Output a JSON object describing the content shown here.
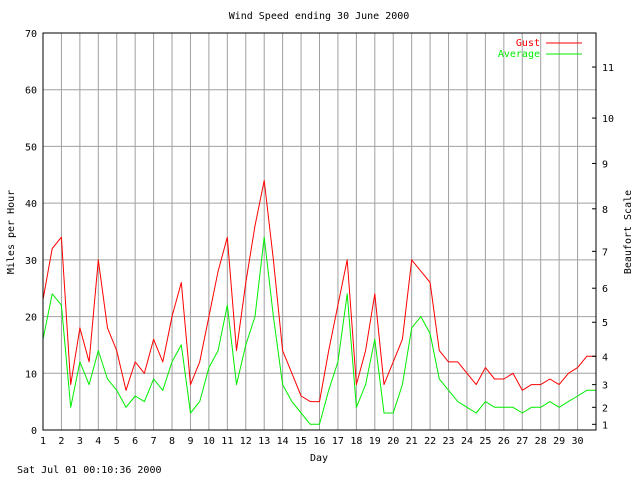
{
  "footer_timestamp": "Sat Jul 01 00:10:36 2000",
  "colors": {
    "gust": "#ff0000",
    "average": "#00ee00",
    "grid": "#a0a0a0",
    "axis": "#000000"
  },
  "chart_data": {
    "type": "line",
    "title": "Wind Speed ending 30 June 2000",
    "xlabel": "Day",
    "ylabel": "Miles per Hour",
    "y2label": "Beaufort Scale",
    "xlim": [
      1,
      31
    ],
    "ylim": [
      0,
      70
    ],
    "x_ticks": [
      1,
      2,
      3,
      4,
      5,
      6,
      7,
      8,
      9,
      10,
      11,
      12,
      13,
      14,
      15,
      16,
      17,
      18,
      19,
      20,
      21,
      22,
      23,
      24,
      25,
      26,
      27,
      28,
      29,
      30
    ],
    "y_ticks": [
      0,
      10,
      20,
      30,
      40,
      50,
      60,
      70
    ],
    "beaufort_ticks": [
      {
        "label": "1",
        "mph": 1.0
      },
      {
        "label": "2",
        "mph": 4.0
      },
      {
        "label": "3",
        "mph": 8.0
      },
      {
        "label": "4",
        "mph": 13.0
      },
      {
        "label": "5",
        "mph": 19.0
      },
      {
        "label": "6",
        "mph": 25.0
      },
      {
        "label": "7",
        "mph": 31.5
      },
      {
        "label": "8",
        "mph": 39.0
      },
      {
        "label": "9",
        "mph": 47.0
      },
      {
        "label": "10",
        "mph": 55.0
      },
      {
        "label": "11",
        "mph": 64.0
      }
    ],
    "grid": true,
    "legend_position": "top-right",
    "x": [
      1.0,
      1.5,
      2.0,
      2.5,
      3.0,
      3.5,
      4.0,
      4.5,
      5.0,
      5.5,
      6.0,
      6.5,
      7.0,
      7.5,
      8.0,
      8.5,
      9.0,
      9.5,
      10.0,
      10.5,
      11.0,
      11.5,
      12.0,
      12.5,
      13.0,
      13.5,
      14.0,
      14.5,
      15.0,
      15.5,
      16.0,
      16.5,
      17.0,
      17.5,
      18.0,
      18.5,
      19.0,
      19.5,
      20.0,
      20.5,
      21.0,
      21.5,
      22.0,
      22.5,
      23.0,
      23.5,
      24.0,
      24.5,
      25.0,
      25.5,
      26.0,
      26.5,
      27.0,
      27.5,
      28.0,
      28.5,
      29.0,
      29.5,
      30.0,
      30.5,
      31.0
    ],
    "series": [
      {
        "name": "Gust",
        "color": "#ff0000",
        "values": [
          23,
          32,
          34,
          8,
          18,
          12,
          30,
          18,
          14,
          7,
          12,
          10,
          16,
          12,
          20,
          26,
          8,
          12,
          20,
          28,
          34,
          14,
          26,
          36,
          44,
          30,
          14,
          10,
          6,
          5,
          5,
          14,
          22,
          30,
          8,
          14,
          24,
          8,
          12,
          16,
          30,
          28,
          26,
          14,
          12,
          12,
          10,
          8,
          11,
          9,
          9,
          10,
          7,
          8,
          8,
          9,
          8,
          10,
          11,
          13,
          13
        ]
      },
      {
        "name": "Average",
        "color": "#00ee00",
        "values": [
          16,
          24,
          22,
          4,
          12,
          8,
          14,
          9,
          7,
          4,
          6,
          5,
          9,
          7,
          12,
          15,
          3,
          5,
          11,
          14,
          22,
          8,
          15,
          20,
          34,
          20,
          8,
          5,
          3,
          1,
          1,
          7,
          12,
          24,
          4,
          8,
          16,
          3,
          3,
          8,
          18,
          20,
          17,
          9,
          7,
          5,
          4,
          3,
          5,
          4,
          4,
          4,
          3,
          4,
          4,
          5,
          4,
          5,
          6,
          7,
          7
        ]
      }
    ]
  }
}
